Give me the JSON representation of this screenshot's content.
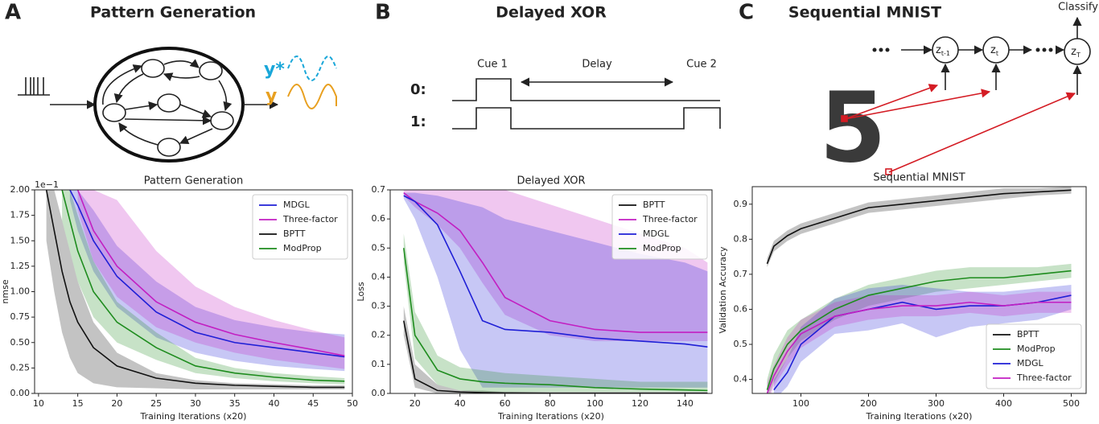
{
  "panels": [
    {
      "letter": "A",
      "title": "Pattern Generation",
      "target_label": "y*",
      "output_label": "y"
    },
    {
      "letter": "B",
      "title": "Delayed XOR",
      "cue1": "Cue 1",
      "delay": "Delay",
      "cue2": "Cue 2",
      "row0": "0:",
      "row1": "1:"
    },
    {
      "letter": "C",
      "title": "Sequential MNIST",
      "classify": "Classify",
      "digit": "5",
      "nodes": [
        {
          "base": "z",
          "sub": "t-1"
        },
        {
          "base": "z",
          "sub": "t"
        },
        {
          "base": "z",
          "sub": "T"
        }
      ]
    }
  ],
  "chart_data": [
    {
      "type": "line",
      "title": "Pattern Generation",
      "xlabel": "Training Iterations (x20)",
      "ylabel": "nmse",
      "offset_label": "1e−1",
      "xlim": [
        9.5,
        50
      ],
      "ylim": [
        0,
        2
      ],
      "xticks": [
        10,
        15,
        20,
        25,
        30,
        35,
        40,
        45,
        50
      ],
      "yticks": [
        {
          "value": 0,
          "label": "0.00"
        },
        0.25,
        {
          "value": 0.5,
          "label": "0.50"
        },
        0.75,
        {
          "value": 1,
          "label": "1.00"
        },
        1.25,
        {
          "value": 1.5,
          "label": "1.50"
        },
        1.75,
        {
          "value": 2,
          "label": "2.00"
        }
      ],
      "legend": "upper right",
      "grid": false,
      "x": [
        11,
        12,
        13,
        14,
        15,
        17,
        20,
        25,
        30,
        35,
        40,
        45,
        49
      ],
      "series": [
        {
          "name": "MDGL",
          "color": "#1f1fd6",
          "values": [
            null,
            null,
            null,
            2.0,
            1.85,
            1.5,
            1.15,
            0.8,
            0.6,
            0.5,
            0.45,
            0.4,
            0.36
          ],
          "lower": [
            null,
            null,
            null,
            1.9,
            1.6,
            1.2,
            0.85,
            0.55,
            0.4,
            0.32,
            0.27,
            0.24,
            0.22
          ],
          "upper": [
            null,
            null,
            null,
            2.0,
            2.0,
            1.8,
            1.45,
            1.1,
            0.85,
            0.72,
            0.65,
            0.6,
            0.58
          ]
        },
        {
          "name": "Three-factor",
          "color": "#c21fc2",
          "values": [
            null,
            null,
            null,
            null,
            2.0,
            1.6,
            1.25,
            0.9,
            0.7,
            0.58,
            0.5,
            0.43,
            0.37
          ],
          "lower": [
            null,
            null,
            null,
            null,
            1.8,
            1.3,
            0.95,
            0.65,
            0.5,
            0.4,
            0.33,
            0.28,
            0.24
          ],
          "upper": [
            null,
            null,
            null,
            null,
            2.0,
            2.0,
            1.9,
            1.4,
            1.05,
            0.85,
            0.72,
            0.62,
            0.55
          ]
        },
        {
          "name": "BPTT",
          "color": "#111111",
          "values": [
            2.0,
            1.6,
            1.2,
            0.9,
            0.7,
            0.45,
            0.27,
            0.15,
            0.1,
            0.08,
            0.07,
            0.06,
            0.06
          ],
          "lower": [
            1.5,
            1.0,
            0.6,
            0.35,
            0.2,
            0.1,
            0.06,
            0.05,
            0.04,
            0.04,
            0.04,
            0.04,
            0.04
          ],
          "upper": [
            2.0,
            2.0,
            1.7,
            1.4,
            1.1,
            0.7,
            0.4,
            0.2,
            0.13,
            0.1,
            0.09,
            0.08,
            0.08
          ]
        },
        {
          "name": "ModProp",
          "color": "#1e8c1e",
          "values": [
            null,
            null,
            2.0,
            1.7,
            1.4,
            1.0,
            0.7,
            0.45,
            0.27,
            0.2,
            0.16,
            0.13,
            0.12
          ],
          "lower": [
            null,
            null,
            1.7,
            1.4,
            1.1,
            0.75,
            0.5,
            0.33,
            0.2,
            0.15,
            0.12,
            0.1,
            0.09
          ],
          "upper": [
            null,
            null,
            2.0,
            2.0,
            1.75,
            1.3,
            0.9,
            0.6,
            0.35,
            0.25,
            0.2,
            0.17,
            0.15
          ]
        }
      ]
    },
    {
      "type": "line",
      "title": "Delayed XOR",
      "xlabel": "Training Iterations (x20)",
      "ylabel": "Loss",
      "xlim": [
        9,
        152
      ],
      "ylim": [
        0,
        0.7
      ],
      "xticks": [
        20,
        40,
        60,
        80,
        100,
        120,
        140
      ],
      "yticks": [
        {
          "value": 0,
          "label": "0.0"
        },
        0.1,
        0.2,
        0.3,
        0.4,
        0.5,
        0.6,
        0.7
      ],
      "legend": "upper right",
      "grid": false,
      "x": [
        15,
        20,
        30,
        40,
        50,
        60,
        80,
        100,
        120,
        140,
        150
      ],
      "series": [
        {
          "name": "BPTT",
          "color": "#111111",
          "values": [
            0.25,
            0.05,
            0.01,
            0.005,
            0.003,
            0.002,
            0.001,
            0.001,
            0.001,
            0.001,
            0.001
          ],
          "lower": [
            0.2,
            0.02,
            0,
            0,
            0,
            0,
            0,
            0,
            0,
            0,
            0
          ],
          "upper": [
            0.3,
            0.1,
            0.03,
            0.01,
            0.01,
            0.005,
            0.005,
            0.005,
            0.005,
            0.005,
            0.005
          ]
        },
        {
          "name": "Three-factor",
          "color": "#c21fc2",
          "values": [
            0.69,
            0.66,
            0.62,
            0.56,
            0.45,
            0.33,
            0.25,
            0.22,
            0.21,
            0.21,
            0.21
          ],
          "lower": [
            0.68,
            0.64,
            0.58,
            0.5,
            0.38,
            0.27,
            0.2,
            0.18,
            0.18,
            0.18,
            0.18
          ],
          "upper": [
            0.7,
            0.7,
            0.7,
            0.7,
            0.7,
            0.7,
            0.65,
            0.6,
            0.55,
            0.5,
            0.45
          ]
        },
        {
          "name": "MDGL",
          "color": "#1f1fd6",
          "values": [
            0.68,
            0.66,
            0.58,
            0.42,
            0.25,
            0.22,
            0.21,
            0.19,
            0.18,
            0.17,
            0.16
          ],
          "lower": [
            0.67,
            0.6,
            0.4,
            0.15,
            0.02,
            0.02,
            0.02,
            0.02,
            0.02,
            0.02,
            0.02
          ],
          "upper": [
            0.69,
            0.69,
            0.68,
            0.66,
            0.64,
            0.6,
            0.56,
            0.52,
            0.48,
            0.45,
            0.42
          ]
        },
        {
          "name": "ModProp",
          "color": "#1e8c1e",
          "values": [
            0.5,
            0.2,
            0.08,
            0.05,
            0.04,
            0.035,
            0.03,
            0.02,
            0.015,
            0.012,
            0.01
          ],
          "lower": [
            0.45,
            0.12,
            0.03,
            0.01,
            0.005,
            0.005,
            0.005,
            0.005,
            0.005,
            0.005,
            0.005
          ],
          "upper": [
            0.55,
            0.28,
            0.13,
            0.09,
            0.08,
            0.07,
            0.06,
            0.05,
            0.04,
            0.04,
            0.04
          ]
        }
      ]
    },
    {
      "type": "line",
      "title": "Sequential MNIST",
      "xlabel": "Training Iterations (x20)",
      "ylabel": "Validation Accuracy",
      "xlim": [
        28,
        522
      ],
      "ylim": [
        0.36,
        0.95
      ],
      "xticks": [
        100,
        200,
        300,
        400,
        500
      ],
      "yticks": [
        0.4,
        0.5,
        0.6,
        0.7,
        0.8,
        0.9
      ],
      "legend": "lower right",
      "grid": false,
      "x": [
        50,
        60,
        80,
        100,
        150,
        200,
        250,
        300,
        350,
        400,
        450,
        500
      ],
      "series": [
        {
          "name": "BPTT",
          "color": "#111111",
          "values": [
            0.73,
            0.78,
            0.81,
            0.83,
            0.86,
            0.89,
            0.9,
            0.91,
            0.92,
            0.93,
            0.935,
            0.94
          ],
          "lower": [
            0.72,
            0.765,
            0.795,
            0.815,
            0.845,
            0.875,
            0.885,
            0.895,
            0.905,
            0.915,
            0.925,
            0.93
          ],
          "upper": [
            0.745,
            0.795,
            0.825,
            0.845,
            0.875,
            0.905,
            0.915,
            0.925,
            0.935,
            0.945,
            0.945,
            0.95
          ]
        },
        {
          "name": "ModProp",
          "color": "#1e8c1e",
          "values": [
            0.37,
            0.43,
            0.5,
            0.54,
            0.6,
            0.64,
            0.66,
            0.68,
            0.69,
            0.69,
            0.7,
            0.71
          ],
          "lower": [
            0.34,
            0.39,
            0.46,
            0.51,
            0.57,
            0.61,
            0.63,
            0.65,
            0.66,
            0.67,
            0.68,
            0.69
          ],
          "upper": [
            0.4,
            0.47,
            0.54,
            0.57,
            0.63,
            0.67,
            0.69,
            0.71,
            0.72,
            0.72,
            0.72,
            0.73
          ]
        },
        {
          "name": "MDGL",
          "color": "#1f1fd6",
          "values": [
            null,
            0.37,
            0.42,
            0.5,
            0.58,
            0.6,
            0.62,
            0.6,
            0.61,
            0.61,
            0.62,
            0.64
          ],
          "lower": [
            null,
            0.34,
            0.38,
            0.45,
            0.53,
            0.54,
            0.56,
            0.52,
            0.55,
            0.56,
            0.57,
            0.6
          ],
          "upper": [
            null,
            0.4,
            0.46,
            0.55,
            0.63,
            0.66,
            0.67,
            0.66,
            0.65,
            0.65,
            0.66,
            0.67
          ]
        },
        {
          "name": "Three-factor",
          "color": "#c21fc2",
          "values": [
            0.36,
            0.41,
            0.48,
            0.53,
            0.58,
            0.6,
            0.61,
            0.61,
            0.62,
            0.61,
            0.62,
            0.62
          ],
          "lower": [
            0.33,
            0.38,
            0.44,
            0.49,
            0.55,
            0.57,
            0.58,
            0.58,
            0.59,
            0.58,
            0.59,
            0.59
          ],
          "upper": [
            0.39,
            0.44,
            0.52,
            0.57,
            0.62,
            0.64,
            0.64,
            0.64,
            0.65,
            0.64,
            0.65,
            0.65
          ]
        }
      ]
    }
  ]
}
